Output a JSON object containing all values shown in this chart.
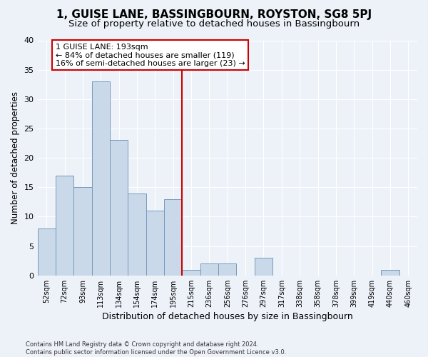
{
  "title1": "1, GUISE LANE, BASSINGBOURN, ROYSTON, SG8 5PJ",
  "title2": "Size of property relative to detached houses in Bassingbourn",
  "xlabel": "Distribution of detached houses by size in Bassingbourn",
  "ylabel": "Number of detached properties",
  "footnote": "Contains HM Land Registry data © Crown copyright and database right 2024.\nContains public sector information licensed under the Open Government Licence v3.0.",
  "bar_labels": [
    "52sqm",
    "72sqm",
    "93sqm",
    "113sqm",
    "134sqm",
    "154sqm",
    "174sqm",
    "195sqm",
    "215sqm",
    "236sqm",
    "256sqm",
    "276sqm",
    "297sqm",
    "317sqm",
    "338sqm",
    "358sqm",
    "378sqm",
    "399sqm",
    "419sqm",
    "440sqm",
    "460sqm"
  ],
  "bar_values": [
    8,
    17,
    15,
    33,
    23,
    14,
    11,
    13,
    1,
    2,
    2,
    0,
    3,
    0,
    0,
    0,
    0,
    0,
    0,
    1,
    0
  ],
  "bar_color": "#c9d9ea",
  "bar_edge_color": "#7799bb",
  "vline_x_idx": 7,
  "vline_color": "#cc0000",
  "annotation_text": "1 GUISE LANE: 193sqm\n← 84% of detached houses are smaller (119)\n16% of semi-detached houses are larger (23) →",
  "annotation_box_color": "#cc0000",
  "bg_color": "#edf2f9",
  "plot_bg_color": "#edf2f9",
  "ylim": [
    0,
    40
  ],
  "yticks": [
    0,
    5,
    10,
    15,
    20,
    25,
    30,
    35,
    40
  ],
  "title1_fontsize": 11,
  "title2_fontsize": 9.5,
  "xlabel_fontsize": 9,
  "ylabel_fontsize": 8.5,
  "grid_color": "#ffffff",
  "annotation_fontsize": 8,
  "tick_fontsize": 7,
  "ytick_fontsize": 8
}
